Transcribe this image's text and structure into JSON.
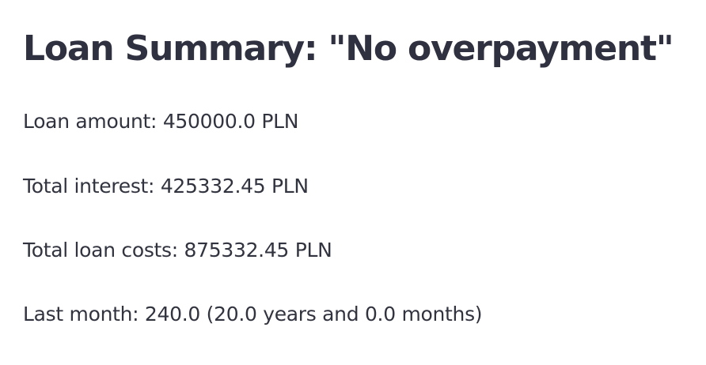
{
  "summary": {
    "title": "Loan Summary: \"No overpayment\"",
    "loan_amount": "Loan amount: 450000.0 PLN",
    "total_interest": "Total interest: 425332.45 PLN",
    "total_costs": "Total loan costs: 875332.45 PLN",
    "last_month": "Last month: 240.0 (20.0 years and 0.0 months)"
  }
}
